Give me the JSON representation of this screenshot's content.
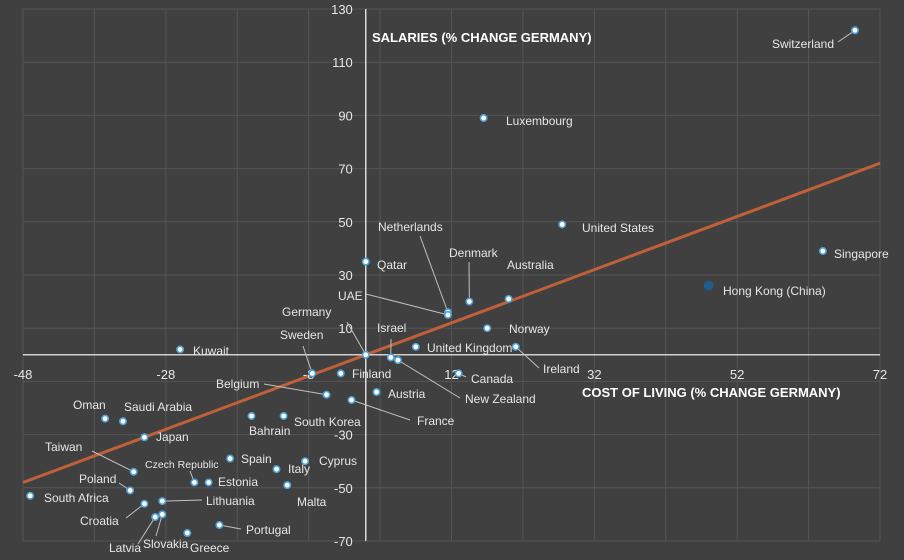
{
  "chart_data": {
    "type": "scatter",
    "title": "",
    "xlabel": "COST OF LIVING (% CHANGE GERMANY)",
    "ylabel": "SALARIES (% CHANGE GERMANY)",
    "xlim": [
      -48,
      72
    ],
    "ylim": [
      -70,
      130
    ],
    "x_ticks": [
      -48,
      -28,
      -8,
      12,
      32,
      52,
      72
    ],
    "y_ticks": [
      -70,
      -50,
      -30,
      10,
      30,
      50,
      70,
      90,
      110,
      130
    ],
    "x_tick_labels": [
      "-48",
      "-28",
      "-8",
      "12",
      "32",
      "52",
      "72"
    ],
    "y_tick_labels": [
      "-70",
      "-50",
      "-30",
      "10",
      "30",
      "50",
      "70",
      "90",
      "110",
      "130"
    ],
    "grid": true,
    "trendline": {
      "type": "linear",
      "from": [
        -48,
        -48
      ],
      "to": [
        72,
        72
      ]
    },
    "colors": {
      "background": "#404040",
      "grid": "#555555",
      "axis": "#ffffff",
      "point_fill": "#ffffff",
      "point_edge": "#4fa3d9",
      "point_highlight": "#1f5d8c",
      "trendline": "#c0603a",
      "leader": "#bfbfbf",
      "text": "#e6e6e6"
    },
    "points": [
      {
        "name": "Switzerland",
        "x": 68.5,
        "y": 122
      },
      {
        "name": "Luxembourg",
        "x": 16.5,
        "y": 89
      },
      {
        "name": "United States",
        "x": 27.5,
        "y": 49
      },
      {
        "name": "Singapore",
        "x": 64,
        "y": 39
      },
      {
        "name": "Hong Kong (China)",
        "x": 48,
        "y": 26,
        "highlight": true
      },
      {
        "name": "Qatar",
        "x": 0,
        "y": 35
      },
      {
        "name": "Netherlands",
        "x": 11.5,
        "y": 16
      },
      {
        "name": "Denmark",
        "x": 14.5,
        "y": 20
      },
      {
        "name": "Australia",
        "x": 20,
        "y": 21
      },
      {
        "name": "UAE",
        "x": 11.5,
        "y": 15
      },
      {
        "name": "Norway",
        "x": 17,
        "y": 10
      },
      {
        "name": "Germany",
        "x": 0,
        "y": 0
      },
      {
        "name": "Israel",
        "x": 3.5,
        "y": -1
      },
      {
        "name": "United Kingdom",
        "x": 7,
        "y": 3
      },
      {
        "name": "Ireland",
        "x": 21,
        "y": 3
      },
      {
        "name": "Kuwait",
        "x": -26,
        "y": 2
      },
      {
        "name": "Sweden",
        "x": -7.5,
        "y": -7
      },
      {
        "name": "Finland",
        "x": -3.5,
        "y": -7
      },
      {
        "name": "Canada",
        "x": 13,
        "y": -7
      },
      {
        "name": "New Zealand",
        "x": 4.5,
        "y": -2
      },
      {
        "name": "Belgium",
        "x": -5.5,
        "y": -15
      },
      {
        "name": "Austria",
        "x": 1.5,
        "y": -14
      },
      {
        "name": "France",
        "x": -2,
        "y": -17
      },
      {
        "name": "Oman",
        "x": -36.5,
        "y": -24
      },
      {
        "name": "Saudi Arabia",
        "x": -34,
        "y": -25
      },
      {
        "name": "Japan",
        "x": -31,
        "y": -31
      },
      {
        "name": "Bahrain",
        "x": -16,
        "y": -23
      },
      {
        "name": "South Korea",
        "x": -11.5,
        "y": -23
      },
      {
        "name": "Spain",
        "x": -19,
        "y": -39
      },
      {
        "name": "Cyprus",
        "x": -8.5,
        "y": -40
      },
      {
        "name": "Italy",
        "x": -12.5,
        "y": -43
      },
      {
        "name": "Taiwan",
        "x": -32.5,
        "y": -44
      },
      {
        "name": "Czech Republic",
        "x": -24,
        "y": -48
      },
      {
        "name": "Estonia",
        "x": -22,
        "y": -48
      },
      {
        "name": "Malta",
        "x": -11,
        "y": -49
      },
      {
        "name": "Poland",
        "x": -33,
        "y": -51
      },
      {
        "name": "South Africa",
        "x": -47,
        "y": -53
      },
      {
        "name": "Lithuania",
        "x": -28.5,
        "y": -55
      },
      {
        "name": "Croatia",
        "x": -31,
        "y": -56
      },
      {
        "name": "Latvia",
        "x": -29.5,
        "y": -61
      },
      {
        "name": "Slovakia",
        "x": -28.5,
        "y": -60
      },
      {
        "name": "Greece",
        "x": -25,
        "y": -67
      },
      {
        "name": "Portugal",
        "x": -20.5,
        "y": -64
      }
    ]
  }
}
